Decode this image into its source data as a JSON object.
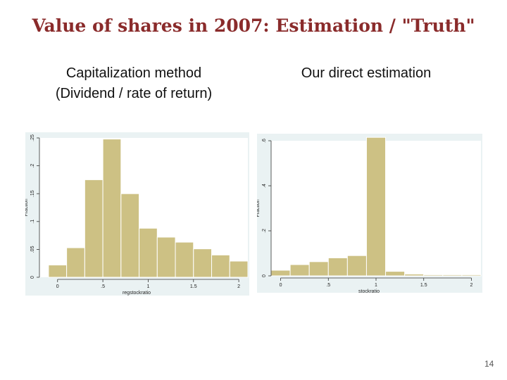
{
  "slide": {
    "title": "Value of shares in 2007: Estimation / \"Truth\"",
    "left_subtitle_line1": "Capitalization method",
    "left_subtitle_line2": "(Dividend / rate of return)",
    "right_subtitle": "Our direct estimation",
    "page_number": "14"
  },
  "colors": {
    "title": "#8a2b2b",
    "bar_fill": "#cdc184",
    "bar_stroke": "#ffffff",
    "panel_bg": "#eaf2f3",
    "plot_bg": "#ffffff"
  },
  "chart_data": [
    {
      "type": "bar",
      "xlabel": "regstockratio",
      "ylabel": "Fraction",
      "xlim": [
        -0.2,
        2.1
      ],
      "ylim": [
        0,
        0.25
      ],
      "xticks": [
        0,
        0.5,
        1,
        1.5,
        2
      ],
      "xtick_labels": [
        "0",
        ".5",
        "1",
        "1.5",
        "2"
      ],
      "yticks": [
        0,
        0.05,
        0.1,
        0.15,
        0.2,
        0.25
      ],
      "ytick_labels": [
        "0",
        ".05",
        ".1",
        ".15",
        ".2",
        ".25"
      ],
      "bin_width": 0.2,
      "bins_left": [
        -0.1,
        0.1,
        0.3,
        0.5,
        0.7,
        0.9,
        1.1,
        1.3,
        1.5,
        1.7,
        1.9
      ],
      "values": [
        0.022,
        0.053,
        0.175,
        0.248,
        0.15,
        0.088,
        0.072,
        0.063,
        0.051,
        0.04,
        0.029
      ]
    },
    {
      "type": "bar",
      "xlabel": "stockratio",
      "ylabel": "Fraction",
      "xlim": [
        -0.1,
        2.1
      ],
      "ylim": [
        0,
        0.6
      ],
      "xticks": [
        0,
        0.5,
        1,
        1.5,
        2
      ],
      "xtick_labels": [
        "0",
        ".5",
        "1",
        "1.5",
        "2"
      ],
      "yticks": [
        0,
        0.2,
        0.4,
        0.6
      ],
      "ytick_labels": [
        "0",
        ".2",
        ".4",
        ".6"
      ],
      "bin_width": 0.2,
      "bins_left": [
        -0.1,
        0.1,
        0.3,
        0.5,
        0.7,
        0.9,
        1.1,
        1.3,
        1.5,
        1.7,
        1.9
      ],
      "values": [
        0.025,
        0.05,
        0.063,
        0.08,
        0.09,
        0.615,
        0.02,
        0.008,
        0.005,
        0.005,
        0.005
      ]
    }
  ]
}
